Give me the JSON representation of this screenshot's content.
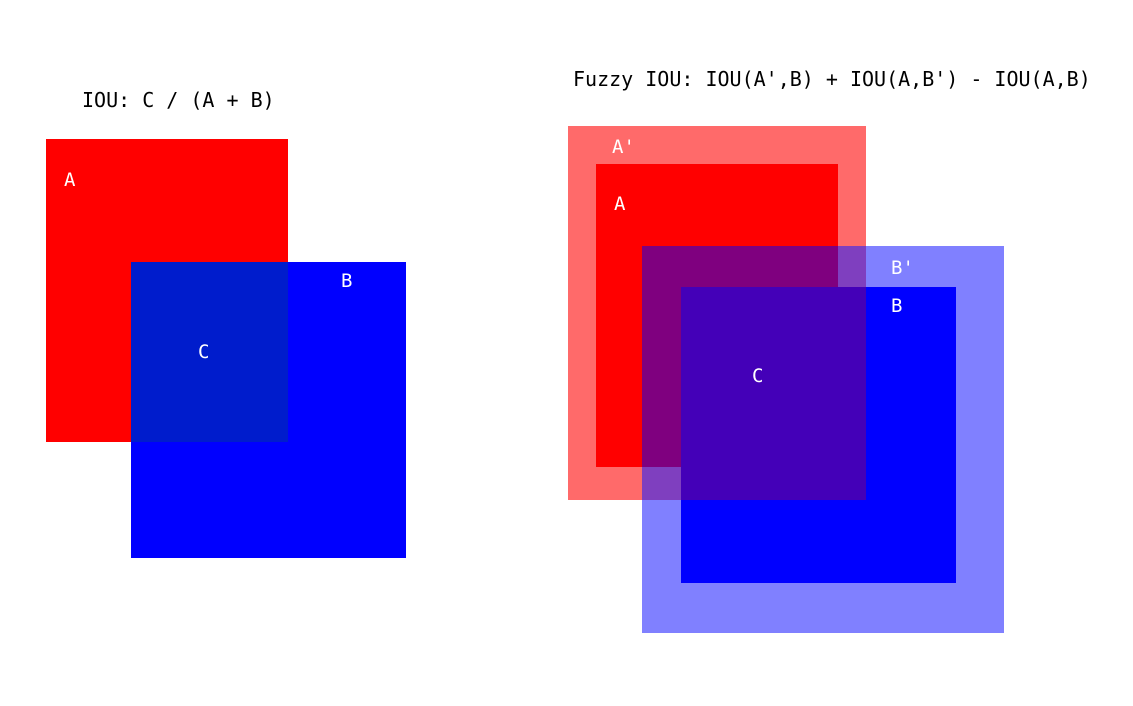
{
  "left_diagram": {
    "title": "IOU: C / (A + B)",
    "labels": {
      "a": "A",
      "b": "B",
      "c": "C"
    }
  },
  "right_diagram": {
    "title": "Fuzzy IOU: IOU(A',B) + IOU(A,B') - IOU(A,B)",
    "labels": {
      "a_prime": "A'",
      "a": "A",
      "b_prime": "B'",
      "b": "B",
      "c": "C"
    }
  },
  "colors": {
    "box_a": "#ff0000",
    "box_b": "#0000ff",
    "overlap_left": "#001ccc",
    "box_a_prime": "#ff6a6a",
    "box_b_prime": "#8080ff",
    "overlap_right": "#4400b8",
    "label_text": "#ffffff",
    "title_text": "#000000"
  }
}
